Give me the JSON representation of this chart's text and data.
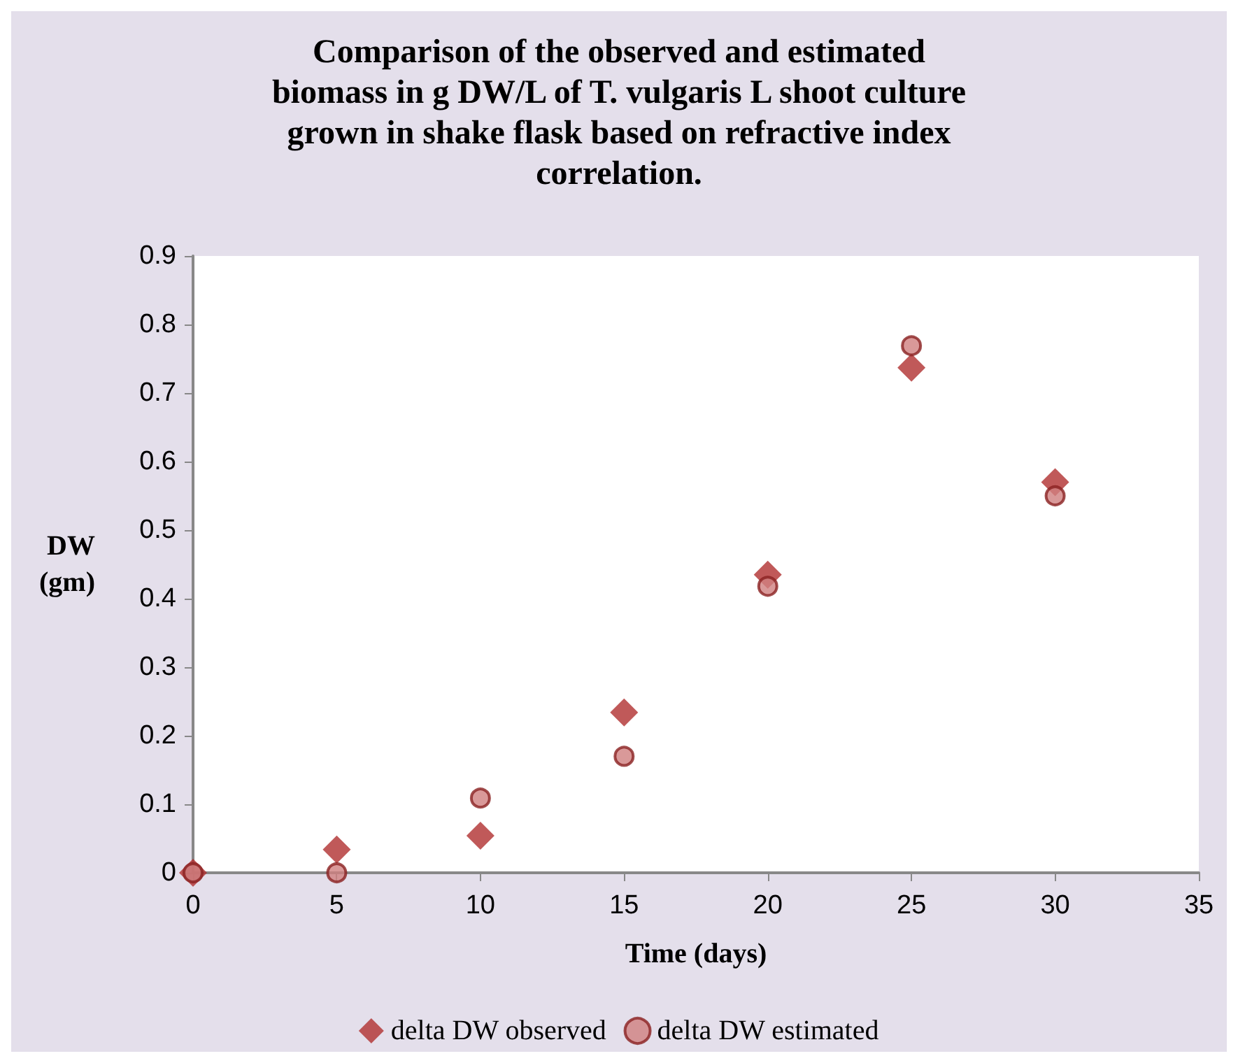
{
  "chart_data": {
    "type": "scatter",
    "title": "Comparison of the observed and estimated\nbiomass in g DW/L of T. vulgaris L shoot culture\ngrown in shake flask based on refractive index\ncorrelation.",
    "xlabel": "Time (days)",
    "ylabel": "DW\n(gm)",
    "x": [
      0,
      5,
      10,
      15,
      20,
      25,
      30
    ],
    "series": [
      {
        "name": "delta DW observed",
        "color": "#b03030",
        "marker": "diamond",
        "values": [
          0,
          0.034,
          0.054,
          0.234,
          0.435,
          0.737,
          0.57
        ]
      },
      {
        "name": "delta DW estimated",
        "color": "#d08080",
        "marker": "circle",
        "values": [
          0,
          0,
          0.109,
          0.17,
          0.418,
          0.769,
          0.55
        ]
      }
    ],
    "xlim": [
      0,
      35
    ],
    "xticks": [
      0,
      5,
      10,
      15,
      20,
      25,
      30,
      35
    ],
    "ylim": [
      0,
      0.9
    ],
    "yticks": [
      0,
      0.1,
      0.2,
      0.3,
      0.4,
      0.5,
      0.6,
      0.7,
      0.8,
      0.9
    ],
    "grid": false,
    "legend": "bottom"
  }
}
